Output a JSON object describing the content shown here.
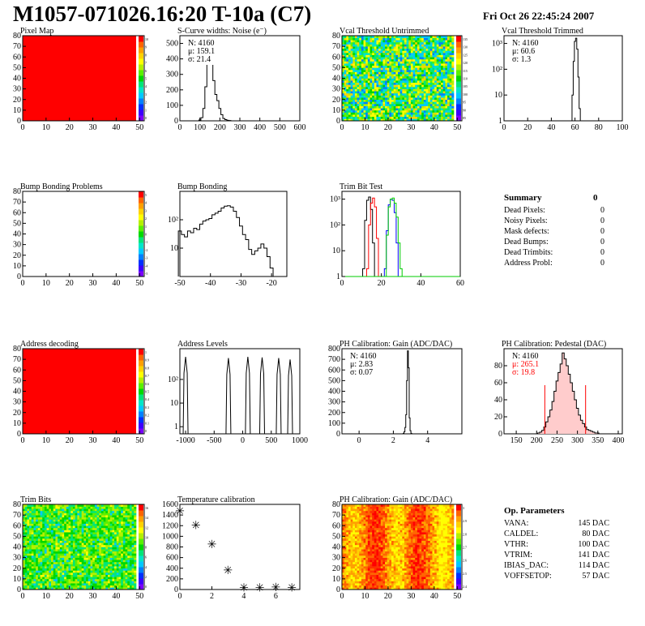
{
  "header": {
    "title": "M1057-071026.16:20 T-10a (C7)",
    "date": "Fri Oct 26 22:45:24 2007"
  },
  "colors": {
    "red": "#ff0000",
    "green": "#00cc00",
    "blue": "#0000ff",
    "histo": "#000000",
    "pedestal_fill": "#ffcccc"
  },
  "palette": [
    "#7b00ff",
    "#3c00ff",
    "#0030ff",
    "#0080ff",
    "#00c8ff",
    "#00e6c8",
    "#00e678",
    "#00d800",
    "#5af000",
    "#b4f000",
    "#ffff00",
    "#ffd200",
    "#ffa000",
    "#ff6400",
    "#ff0000"
  ],
  "chart_data": [
    {
      "id": "pixel_map",
      "type": "heatmap",
      "title": "Pixel Map",
      "xlim": [
        0,
        52
      ],
      "ylim": [
        0,
        80
      ],
      "xticks": [
        "0",
        "10",
        "20",
        "30",
        "40",
        "50"
      ],
      "yticks": [
        "0",
        "10",
        "20",
        "30",
        "40",
        "50",
        "60",
        "70",
        "80"
      ],
      "zlim": [
        0,
        10
      ],
      "zticks": [
        "10",
        "9",
        "8",
        "7",
        "6",
        "5",
        "4",
        "3",
        "2",
        "1",
        "0"
      ],
      "uniform_value": 10
    },
    {
      "id": "noise",
      "type": "histogram",
      "title": "S-Curve widths: Noise (e⁻)",
      "xlim": [
        0,
        600
      ],
      "ylim": [
        0,
        550
      ],
      "xticks": [
        "0",
        "100",
        "200",
        "300",
        "400",
        "500",
        "600"
      ],
      "yticks": [
        "0",
        "100",
        "200",
        "300",
        "400",
        "500"
      ],
      "stats": [
        "N: 4160",
        "μ: 159.1",
        "σ: 21.4"
      ],
      "x": [
        100,
        110,
        120,
        130,
        140,
        150,
        160,
        170,
        180,
        190,
        200,
        210,
        220,
        230,
        240,
        250,
        260
      ],
      "y": [
        5,
        20,
        80,
        220,
        440,
        520,
        390,
        260,
        170,
        130,
        80,
        40,
        15,
        8,
        3,
        2,
        0
      ]
    },
    {
      "id": "vcal_untrimmed",
      "type": "heatmap",
      "title": "Vcal Threshold Untrimmed",
      "xlim": [
        0,
        52
      ],
      "ylim": [
        0,
        80
      ],
      "xticks": [
        "0",
        "10",
        "20",
        "30",
        "40",
        "50"
      ],
      "yticks": [
        "0",
        "10",
        "20",
        "30",
        "40",
        "50",
        "60",
        "70",
        "80"
      ],
      "zticks": [
        "135",
        "130",
        "125",
        "120",
        "115",
        "110",
        "105",
        "100",
        "95",
        "90",
        "85"
      ]
    },
    {
      "id": "vcal_trimmed",
      "type": "histogram",
      "title": "Vcal Threshold Trimmed",
      "logy": true,
      "xlim": [
        0,
        100
      ],
      "ylim": [
        1,
        2000
      ],
      "xticks": [
        "0",
        "20",
        "40",
        "60",
        "80",
        "100"
      ],
      "yticks": [
        "1",
        "10",
        "10²",
        "10³"
      ],
      "stats": [
        "N: 4160",
        "μ: 60.6",
        "σ:  1.3"
      ],
      "x": [
        57,
        58,
        59,
        60,
        61,
        62,
        63,
        64,
        65
      ],
      "y": [
        1,
        10,
        200,
        1200,
        1600,
        600,
        50,
        3,
        1
      ]
    },
    {
      "id": "bump_problems",
      "type": "heatmap",
      "title": "Bump Bonding Problems",
      "xlim": [
        0,
        52
      ],
      "ylim": [
        0,
        80
      ],
      "xticks": [
        "0",
        "10",
        "20",
        "30",
        "40",
        "50"
      ],
      "yticks": [
        "0",
        "10",
        "20",
        "30",
        "40",
        "50",
        "60",
        "70",
        "80"
      ],
      "zticks": [
        "5",
        "4",
        "3",
        "2",
        "1",
        "0",
        "-1",
        "-2",
        "-3",
        "-4",
        "-5"
      ],
      "uniform_value": null
    },
    {
      "id": "bump_bonding",
      "type": "histogram",
      "title": "Bump Bonding",
      "logy": true,
      "xlim": [
        -50,
        -15
      ],
      "ylim": [
        1,
        1000
      ],
      "xticks": [
        "-50",
        "-40",
        "-30",
        "-20"
      ],
      "yticks": [
        "10",
        "10²"
      ],
      "x": [
        -50,
        -49,
        -48,
        -47,
        -46,
        -45,
        -44,
        -43,
        -42,
        -41,
        -40,
        -39,
        -38,
        -37,
        -36,
        -35,
        -34,
        -33,
        -32,
        -31,
        -30,
        -29,
        -28,
        -27,
        -26,
        -25,
        -24,
        -23,
        -22,
        -21,
        -20,
        -19
      ],
      "y": [
        40,
        30,
        25,
        40,
        35,
        50,
        45,
        70,
        90,
        100,
        110,
        150,
        170,
        200,
        260,
        300,
        310,
        280,
        200,
        120,
        60,
        30,
        20,
        9,
        6,
        8,
        10,
        14,
        10,
        5,
        2,
        1
      ]
    },
    {
      "id": "trim_bit_test",
      "type": "histogram",
      "title": "Trim Bit Test",
      "logy": true,
      "xlim": [
        0,
        60
      ],
      "ylim": [
        1,
        2000
      ],
      "xticks": [
        "0",
        "20",
        "40",
        "60"
      ],
      "yticks": [
        "1",
        "10",
        "10²",
        "10³"
      ],
      "series": [
        {
          "color": "black",
          "x": [
            11,
            12,
            13,
            14,
            15,
            16,
            17
          ],
          "y": [
            2,
            150,
            900,
            1200,
            400,
            20,
            1
          ]
        },
        {
          "color": "red",
          "x": [
            13,
            14,
            15,
            16,
            17,
            18,
            19
          ],
          "y": [
            2,
            100,
            700,
            1100,
            500,
            30,
            1
          ]
        },
        {
          "color": "blue",
          "x": [
            22,
            23,
            24,
            25,
            26,
            27,
            28,
            29
          ],
          "y": [
            2,
            60,
            600,
            1000,
            900,
            300,
            20,
            1
          ]
        },
        {
          "color": "green",
          "x": [
            22,
            23,
            24,
            25,
            26,
            27,
            28,
            29,
            30,
            31
          ],
          "y": [
            1,
            40,
            500,
            1000,
            1100,
            700,
            200,
            20,
            2,
            1
          ]
        }
      ]
    },
    {
      "id": "address_decoding",
      "type": "heatmap",
      "title": "Address decoding",
      "xlim": [
        0,
        52
      ],
      "ylim": [
        0,
        80
      ],
      "xticks": [
        "0",
        "10",
        "20",
        "30",
        "40",
        "50"
      ],
      "yticks": [
        "0",
        "10",
        "20",
        "30",
        "40",
        "50",
        "60",
        "70",
        "80"
      ],
      "zticks": [
        "1",
        "0.9",
        "0.8",
        "0.7",
        "0.6",
        "0.5",
        "0.4",
        "0.3",
        "0.2",
        "0.1",
        "0"
      ],
      "uniform_value": 1
    },
    {
      "id": "address_levels",
      "type": "histogram",
      "title": "Address Levels",
      "logy": true,
      "xlim": [
        -1100,
        1000
      ],
      "ylim": [
        0.5,
        2000
      ],
      "xticks": [
        "-1000",
        "-500",
        "0",
        "500",
        "1000"
      ],
      "yticks": [
        "1",
        "10",
        "10²"
      ],
      "peaks": [
        -1000,
        -250,
        90,
        340,
        630,
        830
      ],
      "heights": [
        900,
        800,
        900,
        850,
        800,
        700
      ]
    },
    {
      "id": "gain",
      "type": "histogram",
      "title": "PH Calibration: Gain (ADC/DAC)",
      "xlim": [
        -1,
        6
      ],
      "ylim": [
        0,
        800
      ],
      "xticks": [
        "0",
        "2",
        "4"
      ],
      "yticks": [
        "0",
        "100",
        "200",
        "300",
        "400",
        "500",
        "600",
        "700",
        "800"
      ],
      "stats": [
        "N: 4160",
        "μ: 2.83",
        "σ: 0.07"
      ],
      "x": [
        2.6,
        2.65,
        2.7,
        2.75,
        2.8,
        2.85,
        2.9,
        2.95,
        3.0,
        3.05
      ],
      "y": [
        5,
        20,
        60,
        180,
        500,
        780,
        620,
        150,
        30,
        5
      ]
    },
    {
      "id": "pedestal",
      "type": "histogram",
      "title": "PH Calibration: Pedestal (DAC)",
      "xlim": [
        120,
        410
      ],
      "ylim": [
        0,
        100
      ],
      "xticks": [
        "150",
        "200",
        "250",
        "300",
        "350",
        "400"
      ],
      "yticks": [
        "0",
        "20",
        "40",
        "60",
        "80"
      ],
      "stats": [
        "N: 4160",
        "μ: 265.1",
        "σ: 19.8"
      ],
      "cuts": [
        220,
        320
      ],
      "x": [
        205,
        210,
        215,
        220,
        225,
        230,
        235,
        240,
        245,
        250,
        255,
        260,
        265,
        270,
        275,
        280,
        285,
        290,
        295,
        300,
        305,
        310,
        315,
        320,
        325,
        330,
        335,
        340,
        345,
        350
      ],
      "y": [
        1,
        2,
        4,
        8,
        14,
        20,
        28,
        38,
        50,
        62,
        72,
        82,
        95,
        88,
        80,
        70,
        60,
        50,
        40,
        30,
        22,
        16,
        12,
        8,
        5,
        4,
        3,
        2,
        1,
        1
      ]
    },
    {
      "id": "trim_bits",
      "type": "heatmap",
      "title": "Trim Bits",
      "xlim": [
        0,
        52
      ],
      "ylim": [
        0,
        80
      ],
      "xticks": [
        "0",
        "10",
        "20",
        "30",
        "40",
        "50"
      ],
      "yticks": [
        "0",
        "10",
        "20",
        "30",
        "40",
        "50",
        "60",
        "70",
        "80"
      ],
      "zticks": [
        "16",
        "14",
        "12",
        "10",
        "8",
        "6",
        "4",
        "2",
        "0"
      ]
    },
    {
      "id": "temperature",
      "type": "scatter",
      "title": "Temperature calibration",
      "xlim": [
        0,
        7.5
      ],
      "ylim": [
        0,
        1600
      ],
      "xticks": [
        "0",
        "2",
        "4",
        "6"
      ],
      "yticks": [
        "0",
        "200",
        "400",
        "600",
        "800",
        "1000",
        "1200",
        "1400",
        "1600"
      ],
      "x": [
        0,
        1,
        2,
        3,
        4,
        5,
        6,
        7
      ],
      "y": [
        1460,
        1200,
        840,
        350,
        20,
        20,
        30,
        20
      ]
    },
    {
      "id": "gain_map",
      "type": "heatmap",
      "title": "PH Calibration: Gain (ADC/DAC)",
      "xlim": [
        0,
        52
      ],
      "ylim": [
        0,
        80
      ],
      "xticks": [
        "0",
        "10",
        "20",
        "30",
        "40",
        "50"
      ],
      "yticks": [
        "0",
        "10",
        "20",
        "30",
        "40",
        "50",
        "60",
        "70",
        "80"
      ],
      "zticks": [
        "3",
        "2.9",
        "2.8",
        "2.7",
        "2.6",
        "2.5",
        "2.4"
      ]
    }
  ],
  "summary": {
    "title": "Summary",
    "title_value": "0",
    "rows": [
      {
        "label": "Dead Pixels:",
        "value": "0"
      },
      {
        "label": "Noisy Pixels:",
        "value": "0"
      },
      {
        "label": "Mask defects:",
        "value": "0"
      },
      {
        "label": "Dead Bumps:",
        "value": "0"
      },
      {
        "label": "Dead Trimbits:",
        "value": "0"
      },
      {
        "label": "Address Probl:",
        "value": "0"
      }
    ]
  },
  "op_params": {
    "title": "Op. Parameters",
    "rows": [
      {
        "label": "VANA:",
        "value": "145 DAC"
      },
      {
        "label": "CALDEL:",
        "value": "80 DAC"
      },
      {
        "label": "VTHR:",
        "value": "100 DAC"
      },
      {
        "label": "VTRIM:",
        "value": "141 DAC"
      },
      {
        "label": "IBIAS_DAC:",
        "value": "114 DAC"
      },
      {
        "label": "VOFFSETOP:",
        "value": "57 DAC"
      }
    ]
  }
}
